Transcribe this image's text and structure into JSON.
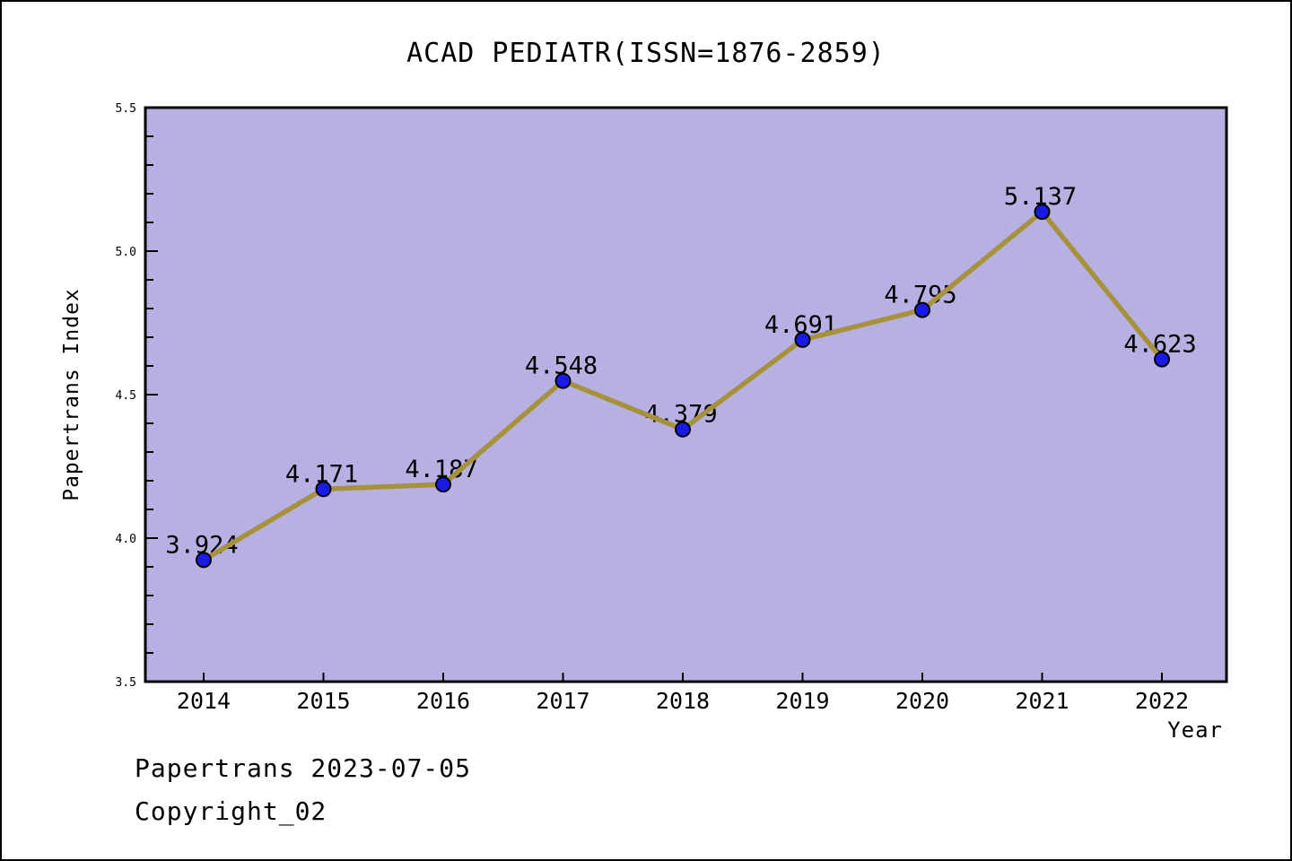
{
  "title": "ACAD PEDIATR(ISSN=1876-2859)",
  "footer": {
    "line1": "Papertrans 2023-07-05",
    "line2": "Copyright_02"
  },
  "chart_data": {
    "type": "line",
    "title": "ACAD PEDIATR(ISSN=1876-2859)",
    "x": [
      "2014",
      "2015",
      "2016",
      "2017",
      "2018",
      "2019",
      "2020",
      "2021",
      "2022"
    ],
    "series": [
      {
        "name": "Papertrans Index",
        "values": [
          3.924,
          4.171,
          4.187,
          4.548,
          4.379,
          4.691,
          4.795,
          5.137,
          4.623
        ]
      }
    ],
    "point_labels": [
      "3.924",
      "4.171",
      "4.187",
      "4.548",
      "4.379",
      "4.691",
      "4.795",
      "5.137",
      "4.623"
    ],
    "xlabel": "Year",
    "ylabel": "Papertrans Index",
    "ylim": [
      3.5,
      5.5
    ],
    "ytick_major_step": 0.5,
    "ytick_minor_step": 0.1,
    "ytick_labels": [
      "3.5",
      "4.0",
      "4.5",
      "5.0",
      "5.5"
    ],
    "grid": false,
    "legend": "none",
    "marker": "circle",
    "colors": {
      "figure_background": "#ffffff",
      "plot_background": "#b6b1e2",
      "line": "#a8913c",
      "marker_fill": "#1a1ae6",
      "marker_edge": "#000000",
      "axis": "#000000",
      "text": "#000000"
    }
  }
}
